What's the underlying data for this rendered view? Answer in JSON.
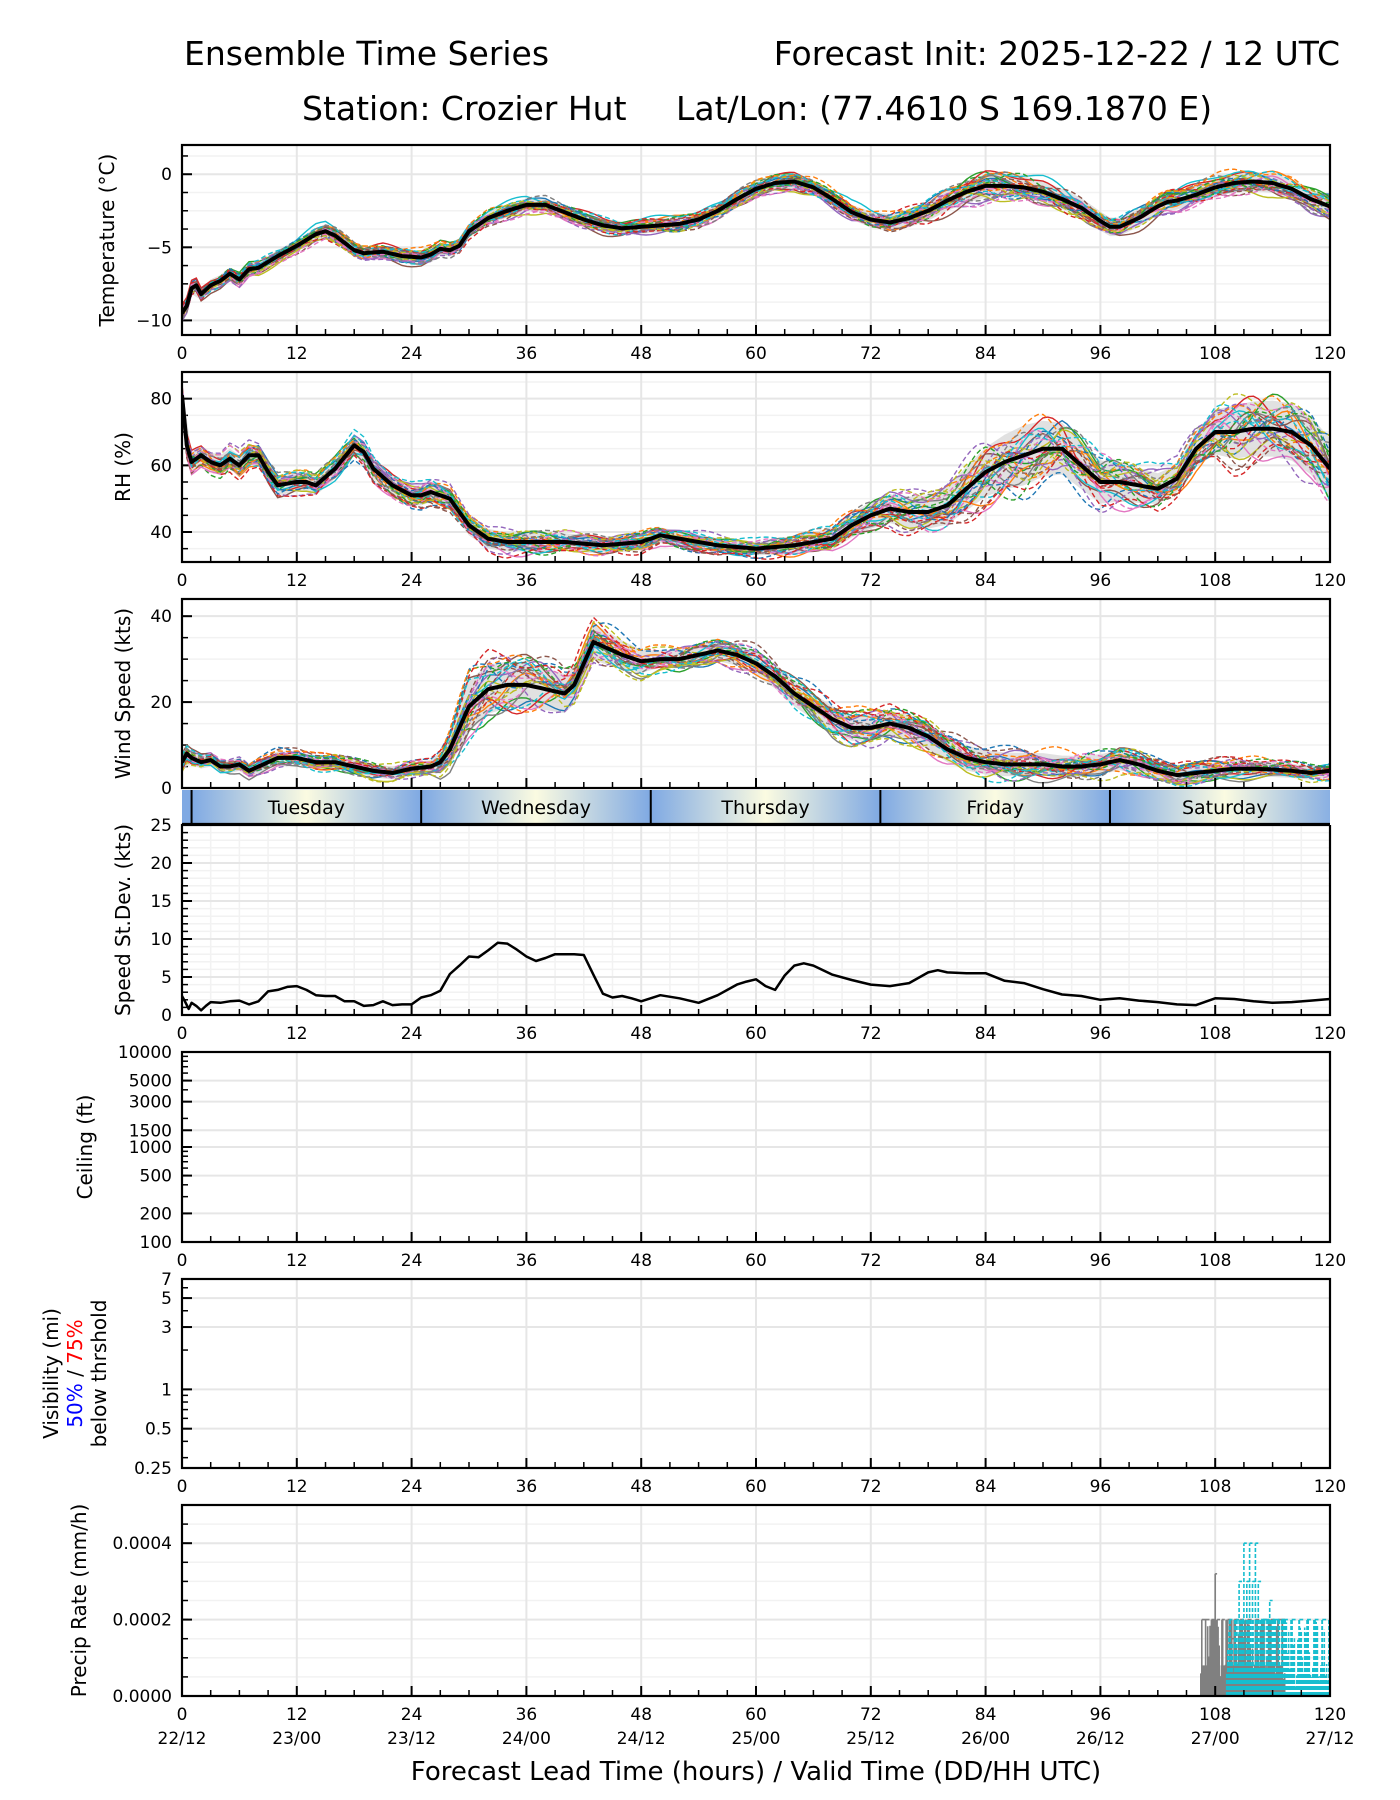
{
  "header": {
    "title_left": "Ensemble Time Series",
    "title_right": "Forecast Init: 2025-12-22 / 12 UTC",
    "station": "Station: Crozier Hut",
    "latlon": "Lat/Lon: (77.4610 S 169.1870 E)"
  },
  "colors": {
    "member_palette": [
      "#1f77b4",
      "#ff7f0e",
      "#2ca02c",
      "#d62728",
      "#9467bd",
      "#8c564b",
      "#e377c2",
      "#7f7f7f",
      "#bcbd22",
      "#17becf"
    ],
    "mean": "#000000",
    "spread": "#d9d9d9",
    "grid": "#e6e6e6",
    "day_bar_edge": "#7fa9e3",
    "day_bar_center": "#fbfbe1",
    "vis_50": "#0000ff",
    "vis_75": "#ff0000",
    "precip_gray": "#808080",
    "precip_cyan": "#17becf"
  },
  "xaxis": {
    "ticks": [
      0,
      12,
      24,
      36,
      48,
      60,
      72,
      84,
      96,
      108,
      120
    ],
    "valid_labels": [
      "22/12",
      "23/00",
      "23/12",
      "24/00",
      "24/12",
      "25/00",
      "25/12",
      "26/00",
      "26/12",
      "27/00",
      "27/12"
    ],
    "xlabel": "Forecast Lead Time (hours) / Valid Time (DD/HH UTC)",
    "range": [
      0,
      120
    ]
  },
  "day_bar": {
    "days": [
      {
        "label": "Tuesday",
        "start": 1,
        "end": 25
      },
      {
        "label": "Wednesday",
        "start": 25,
        "end": 49
      },
      {
        "label": "Thursday",
        "start": 49,
        "end": 73
      },
      {
        "label": "Friday",
        "start": 73,
        "end": 97
      },
      {
        "label": "Saturday",
        "start": 97,
        "end": 121
      }
    ]
  },
  "chart_data": [
    {
      "id": "temperature",
      "type": "line",
      "ylabel": "Temperature (°C)",
      "ylim": [
        -11,
        2
      ],
      "yticks": [
        -10,
        -5,
        0
      ],
      "grid": true,
      "mean": {
        "x": [
          0,
          0.5,
          1,
          1.5,
          2,
          3,
          4,
          5,
          6,
          7,
          8,
          10,
          12,
          14,
          15,
          16,
          18,
          19,
          21,
          23,
          25,
          26,
          27,
          28,
          29,
          30,
          32,
          34,
          36,
          38,
          40,
          42,
          44,
          46,
          48,
          50,
          52,
          54,
          56,
          58,
          60,
          62,
          64,
          66,
          68,
          70,
          72,
          74,
          76,
          78,
          80,
          82,
          84,
          86,
          88,
          90,
          92,
          94,
          96,
          97,
          98,
          100,
          102,
          103,
          104,
          106,
          108,
          110,
          112,
          114,
          116,
          118,
          120
        ],
        "y": [
          -9.5,
          -9.0,
          -7.8,
          -7.6,
          -8.2,
          -7.6,
          -7.3,
          -6.8,
          -7.2,
          -6.5,
          -6.4,
          -5.6,
          -4.9,
          -4.1,
          -3.9,
          -4.2,
          -5.2,
          -5.4,
          -5.3,
          -5.6,
          -5.7,
          -5.5,
          -5.1,
          -5.2,
          -4.9,
          -3.9,
          -3.0,
          -2.5,
          -2.1,
          -2.1,
          -2.6,
          -3.1,
          -3.5,
          -3.7,
          -3.6,
          -3.5,
          -3.4,
          -3.1,
          -2.5,
          -1.7,
          -1.0,
          -0.6,
          -0.5,
          -0.9,
          -1.7,
          -2.6,
          -3.1,
          -3.3,
          -3.0,
          -2.5,
          -1.8,
          -1.2,
          -0.8,
          -0.8,
          -0.9,
          -1.2,
          -1.7,
          -2.3,
          -3.2,
          -3.6,
          -3.6,
          -3.0,
          -2.2,
          -1.9,
          -1.8,
          -1.4,
          -0.9,
          -0.6,
          -0.5,
          -0.6,
          -1.0,
          -1.7,
          -2.2
        ]
      },
      "members": 30
    },
    {
      "id": "rh",
      "type": "line",
      "ylabel": "RH (%)",
      "ylim": [
        31,
        88
      ],
      "yticks": [
        40,
        60,
        80
      ],
      "grid": true,
      "mean": {
        "x": [
          0,
          0.5,
          1,
          2,
          3,
          4,
          5,
          6,
          7,
          8,
          9,
          10,
          12,
          13,
          14,
          16,
          18,
          19,
          20,
          22,
          24,
          25,
          26,
          28,
          30,
          32,
          34,
          36,
          40,
          44,
          48,
          50,
          52,
          56,
          60,
          64,
          68,
          70,
          72,
          74,
          76,
          78,
          80,
          82,
          84,
          86,
          88,
          90,
          92,
          94,
          96,
          98,
          100,
          102,
          104,
          106,
          108,
          110,
          112,
          114,
          116,
          118,
          120
        ],
        "y": [
          81,
          66,
          61,
          63,
          61,
          60,
          62,
          60,
          63,
          63,
          58,
          54,
          55,
          55,
          54,
          59,
          66,
          64,
          59,
          54,
          51,
          51,
          52,
          50,
          42,
          38,
          37,
          37,
          37,
          36,
          37,
          39,
          38,
          36,
          35,
          36,
          38,
          42,
          45,
          47,
          46,
          46,
          48,
          53,
          58,
          61,
          63,
          65,
          65,
          60,
          55,
          55,
          54,
          53,
          56,
          65,
          70,
          70,
          71,
          71,
          70,
          66,
          59
        ]
      },
      "members": 30
    },
    {
      "id": "wind_speed",
      "type": "line",
      "ylabel": "Wind Speed (kts)",
      "ylim": [
        0,
        44
      ],
      "yticks": [
        0,
        20,
        40
      ],
      "grid": true,
      "mean": {
        "x": [
          0,
          0.5,
          1,
          2,
          3,
          4,
          5,
          6,
          7,
          8,
          10,
          12,
          14,
          16,
          18,
          20,
          22,
          24,
          26,
          27,
          28,
          29,
          30,
          32,
          34,
          36,
          38,
          40,
          41,
          42,
          43,
          44,
          46,
          48,
          50,
          52,
          54,
          56,
          58,
          60,
          62,
          64,
          66,
          68,
          70,
          72,
          74,
          76,
          78,
          80,
          82,
          84,
          86,
          88,
          90,
          92,
          94,
          96,
          98,
          100,
          102,
          104,
          106,
          108,
          110,
          112,
          114,
          116,
          118,
          120
        ],
        "y": [
          6,
          8,
          7,
          6,
          6.5,
          5,
          5,
          5.5,
          4,
          5,
          7,
          7,
          6,
          6,
          5,
          4,
          3.5,
          4.5,
          5,
          6,
          9,
          14,
          19,
          23,
          24,
          24,
          23,
          22,
          24,
          29,
          34,
          33,
          31,
          29.5,
          30,
          30,
          31,
          32,
          31,
          29,
          26,
          22,
          19,
          16,
          14,
          14,
          15,
          14,
          12,
          9,
          7,
          6,
          5.5,
          5.5,
          5.5,
          5,
          5,
          5.5,
          6.5,
          5.5,
          4,
          3,
          3.5,
          4,
          4.5,
          4.5,
          4.3,
          4,
          3.5,
          4
        ]
      },
      "members": 30
    },
    {
      "id": "speed_stdev",
      "type": "line",
      "ylabel": "Speed St.Dev. (kts)",
      "ylim": [
        0,
        25
      ],
      "yticks": [
        0,
        5,
        10,
        15,
        20,
        25
      ],
      "grid": true,
      "series": [
        {
          "name": "St.Dev.",
          "x": [
            0,
            0.3,
            0.7,
            1,
            1.5,
            2,
            2.5,
            3,
            4,
            5,
            6,
            7,
            8,
            9,
            10,
            11,
            12,
            13,
            14,
            15,
            16,
            17,
            18,
            19,
            20,
            21,
            22,
            23,
            24,
            25,
            26,
            27,
            28,
            29,
            30,
            31,
            32,
            33,
            34,
            35,
            36,
            37,
            38,
            39,
            40,
            41,
            42,
            43,
            44,
            45,
            46,
            47,
            48,
            50,
            52,
            54,
            56,
            58,
            59,
            60,
            61,
            62,
            63,
            64,
            65,
            66,
            68,
            70,
            72,
            74,
            76,
            78,
            79,
            80,
            82,
            84,
            86,
            88,
            90,
            92,
            94,
            96,
            98,
            100,
            102,
            104,
            106,
            108,
            110,
            112,
            114,
            116,
            118,
            120
          ],
          "y": [
            2.5,
            1.8,
            0.8,
            1.6,
            1.2,
            0.6,
            1.2,
            1.7,
            1.6,
            1.8,
            1.9,
            1.4,
            1.8,
            3.1,
            3.3,
            3.7,
            3.8,
            3.3,
            2.6,
            2.5,
            2.5,
            1.8,
            1.8,
            1.2,
            1.3,
            1.8,
            1.3,
            1.4,
            1.4,
            2.3,
            2.6,
            3.2,
            5.4,
            6.5,
            7.7,
            7.6,
            8.5,
            9.5,
            9.4,
            8.6,
            7.7,
            7.1,
            7.5,
            8.0,
            8.0,
            8.0,
            7.9,
            5.3,
            2.8,
            2.3,
            2.5,
            2.2,
            1.8,
            2.6,
            2.2,
            1.6,
            2.6,
            4.0,
            4.4,
            4.7,
            3.8,
            3.3,
            5.2,
            6.5,
            6.8,
            6.5,
            5.3,
            4.6,
            4.0,
            3.8,
            4.2,
            5.6,
            5.9,
            5.6,
            5.5,
            5.5,
            4.5,
            4.2,
            3.4,
            2.7,
            2.5,
            2.0,
            2.2,
            1.9,
            1.7,
            1.4,
            1.3,
            2.2,
            2.1,
            1.8,
            1.6,
            1.7,
            1.9,
            2.1
          ]
        }
      ]
    },
    {
      "id": "ceiling",
      "type": "line",
      "ylabel": "Ceiling (ft)",
      "yscale": "log",
      "ylim": [
        100,
        10000
      ],
      "yticks": [
        100,
        200,
        500,
        1000,
        1500,
        3000,
        5000,
        10000
      ],
      "grid": true,
      "series": []
    },
    {
      "id": "visibility",
      "type": "line",
      "ylabel_line1": "Visibility (mi)",
      "ylabel_50": "50%",
      "ylabel_sep": " / ",
      "ylabel_75": "75%",
      "ylabel_line3": "below thrshold",
      "yscale": "log",
      "ylim": [
        0.25,
        7
      ],
      "yticks": [
        0.25,
        0.5,
        1,
        3,
        5,
        7
      ],
      "grid": true,
      "series": []
    },
    {
      "id": "precip",
      "type": "line",
      "ylabel": "Precip Rate (mm/h)",
      "ylim": [
        0,
        0.0005
      ],
      "yticks": [
        0.0,
        0.0002,
        0.0004
      ],
      "ytick_labels": [
        "0.0000",
        "0.0002",
        "0.0004"
      ],
      "grid": true,
      "series": [
        {
          "name": "member-gray",
          "style": "solid",
          "x": [
            106.5,
            106.6,
            107,
            107.4,
            107.6,
            107.8,
            108,
            108.2,
            108.5,
            108.7,
            109,
            109.3,
            109.6,
            110,
            110.3,
            110.6,
            111,
            111.4,
            111.8,
            112.2,
            112.6,
            113,
            113.4,
            113.8,
            114.2,
            114.6,
            115,
            115.3
          ],
          "y": [
            0,
            0.0002,
            0.0002,
            8e-05,
            0.0002,
            0.0002,
            0.00032,
            0.0002,
            5e-05,
            0.0002,
            8e-05,
            0.0002,
            0.00015,
            0.0002,
            5e-05,
            0.0002,
            0.0001,
            0.0002,
            8e-05,
            0.0002,
            5e-05,
            0.0002,
            0.0001,
            0.0002,
            8e-05,
            0.0002,
            0.0002,
            0
          ]
        },
        {
          "name": "member-cyan",
          "style": "dashed",
          "x": [
            109.2,
            109.5,
            109.8,
            110.2,
            110.5,
            110.8,
            111,
            111.3,
            111.6,
            111.9,
            112.2,
            112.5,
            112.8,
            113.1,
            113.4,
            113.7,
            114,
            114.3,
            115.3,
            115.6,
            116,
            116.4,
            116.8,
            117.2,
            117.6,
            118,
            118.4,
            118.8,
            119.2,
            119.6,
            120
          ],
          "y": [
            0,
            0.0002,
            5e-05,
            0.0002,
            0.0003,
            0.0002,
            0.0004,
            0.0003,
            0.0004,
            0.0003,
            0.0004,
            0.0003,
            0.0002,
            0.0002,
            0.0002,
            0.00025,
            0.0002,
            0.0002,
            0.0002,
            5e-05,
            0.0002,
            0.0,
            0.0002,
            5e-05,
            0.0002,
            0.0,
            0.0002,
            5e-05,
            0.0002,
            0.0,
            0.0002
          ]
        }
      ]
    }
  ]
}
